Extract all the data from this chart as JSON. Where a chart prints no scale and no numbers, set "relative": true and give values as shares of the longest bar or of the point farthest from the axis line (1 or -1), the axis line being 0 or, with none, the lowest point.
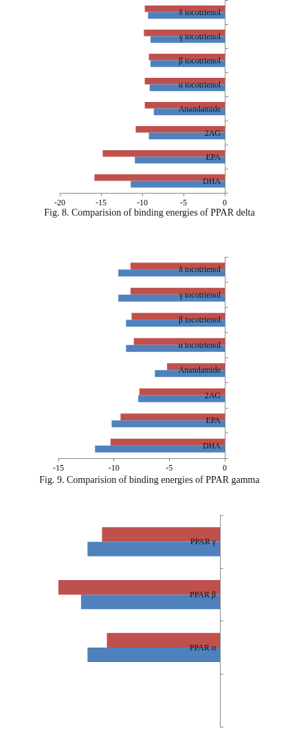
{
  "chart_data": [
    {
      "type": "bar",
      "orientation": "horizontal",
      "categories": [
        "δ tocotrienol",
        "γ tocotrienol",
        "β tocotrienol",
        "α tocotrienol",
        "Anandamide",
        "2AG",
        "EPA",
        "DHA"
      ],
      "series": [
        {
          "color": "#c0504d",
          "values": [
            -9.7,
            -9.8,
            -9.2,
            -9.7,
            -9.7,
            -10.8,
            -14.8,
            -15.8
          ]
        },
        {
          "color": "#4f81bd",
          "values": [
            -9.3,
            -9.0,
            -9.0,
            -9.1,
            -8.6,
            -9.2,
            -10.9,
            -11.4
          ]
        }
      ],
      "xlim": [
        -20,
        0
      ],
      "xticks": [
        -20,
        -15,
        -10,
        -5,
        0
      ],
      "grid": false,
      "annotations": [
        "Fig. 8. Comparision of binding energies of PPAR delta"
      ]
    },
    {
      "type": "bar",
      "orientation": "horizontal",
      "categories": [
        "δ tocotrienol",
        "γ tocotrienol",
        "β tocotrienol",
        "α tocotrienol",
        "Anandamide",
        "2AG",
        "EPA",
        "DHA"
      ],
      "series": [
        {
          "color": "#c0504d",
          "values": [
            -8.5,
            -8.5,
            -8.4,
            -8.2,
            -5.2,
            -7.7,
            -9.4,
            -10.3
          ]
        },
        {
          "color": "#4f81bd",
          "values": [
            -9.6,
            -9.6,
            -8.9,
            -8.9,
            -6.3,
            -7.8,
            -10.2,
            -11.7
          ]
        }
      ],
      "xlim": [
        -15,
        0
      ],
      "xticks": [
        -15,
        -10,
        -5,
        0
      ],
      "grid": false,
      "annotations": [
        "Fig. 9. Comparision of binding energies of PPAR gamma"
      ]
    },
    {
      "type": "bar",
      "orientation": "horizontal",
      "relative": true,
      "categories": [
        "PPAR γ",
        "PPAR β",
        "PPAR α",
        null
      ],
      "series": [
        {
          "color": "#c0504d",
          "values": [
            -0.73,
            -1,
            -0.7,
            null
          ]
        },
        {
          "color": "#4f81bd",
          "values": [
            -0.82,
            -0.86,
            -0.82,
            null
          ]
        }
      ],
      "grid": false
    }
  ]
}
